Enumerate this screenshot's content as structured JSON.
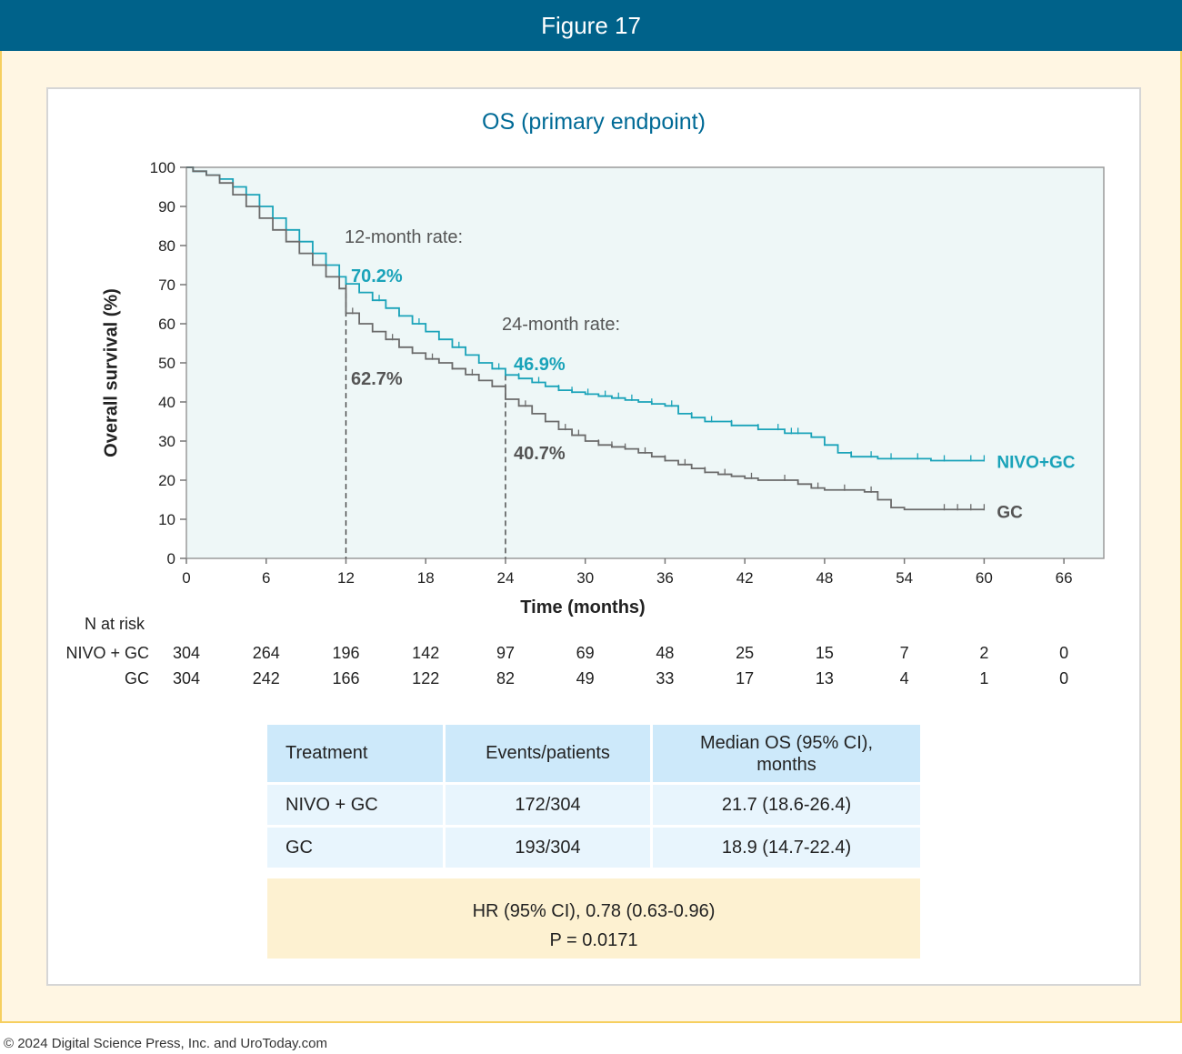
{
  "figure_title": "Figure 17",
  "footer": "© 2024 Digital Science Press, Inc. and UroToday.com",
  "chart_data": {
    "type": "line",
    "title": "OS (primary endpoint)",
    "xlabel": "Time (months)",
    "ylabel": "Overall survival (%)",
    "xlim": [
      0,
      69
    ],
    "ylim": [
      0,
      100
    ],
    "xticks": [
      0,
      6,
      12,
      18,
      24,
      30,
      36,
      42,
      48,
      54,
      60,
      66
    ],
    "yticks": [
      0,
      10,
      20,
      30,
      40,
      50,
      60,
      70,
      80,
      90,
      100
    ],
    "grid": false,
    "legend": "inline labels at line ends (right)",
    "series": [
      {
        "name": "NIVO+GC",
        "color": "#1aa3b9",
        "points": [
          [
            0,
            100
          ],
          [
            0.5,
            99
          ],
          [
            1.5,
            98
          ],
          [
            2.5,
            97
          ],
          [
            3.5,
            95
          ],
          [
            4.5,
            93
          ],
          [
            5.5,
            90
          ],
          [
            6.5,
            87
          ],
          [
            7.5,
            84
          ],
          [
            8.5,
            81
          ],
          [
            9.5,
            78
          ],
          [
            10.5,
            75
          ],
          [
            11.5,
            72
          ],
          [
            12,
            70.2
          ],
          [
            13,
            68
          ],
          [
            14,
            66
          ],
          [
            15,
            64
          ],
          [
            16,
            62
          ],
          [
            17,
            60
          ],
          [
            18,
            58
          ],
          [
            19,
            56
          ],
          [
            20,
            54
          ],
          [
            21,
            52
          ],
          [
            22,
            50
          ],
          [
            23,
            48.5
          ],
          [
            24,
            46.9
          ],
          [
            25,
            46
          ],
          [
            26,
            45
          ],
          [
            27,
            44
          ],
          [
            28,
            43
          ],
          [
            29,
            42.5
          ],
          [
            30,
            42
          ],
          [
            31,
            41.5
          ],
          [
            32,
            41
          ],
          [
            33,
            40.5
          ],
          [
            34,
            40
          ],
          [
            35,
            39.5
          ],
          [
            36,
            39
          ],
          [
            37,
            37
          ],
          [
            38,
            36
          ],
          [
            39,
            35
          ],
          [
            40,
            35
          ],
          [
            41,
            34
          ],
          [
            42,
            34
          ],
          [
            43,
            33
          ],
          [
            44,
            33
          ],
          [
            45,
            32
          ],
          [
            46,
            32
          ],
          [
            47,
            31
          ],
          [
            48,
            29
          ],
          [
            49,
            27
          ],
          [
            50,
            26
          ],
          [
            52,
            25.5
          ],
          [
            54,
            25.5
          ],
          [
            56,
            25
          ],
          [
            58,
            25
          ],
          [
            60,
            25
          ]
        ],
        "censor_months": [
          13,
          14.5,
          16,
          17.5,
          19,
          20.5,
          22,
          23.5,
          25,
          26.5,
          28,
          29,
          30.2,
          31.5,
          32.5,
          33.5,
          35,
          36.5,
          38,
          39.5,
          41,
          43,
          44.5,
          45.5,
          46,
          50,
          51.5,
          53,
          55,
          57,
          59,
          60
        ]
      },
      {
        "name": "GC",
        "color": "#6b6b6b",
        "points": [
          [
            0,
            100
          ],
          [
            0.5,
            99
          ],
          [
            1.5,
            98
          ],
          [
            2.5,
            96
          ],
          [
            3.5,
            93
          ],
          [
            4.5,
            90
          ],
          [
            5.5,
            87
          ],
          [
            6.5,
            84
          ],
          [
            7.5,
            81
          ],
          [
            8.5,
            78
          ],
          [
            9.5,
            75
          ],
          [
            10.5,
            72
          ],
          [
            11.5,
            69
          ],
          [
            12,
            62.7
          ],
          [
            13,
            60
          ],
          [
            14,
            58
          ],
          [
            15,
            56
          ],
          [
            16,
            54
          ],
          [
            17,
            52.5
          ],
          [
            18,
            51
          ],
          [
            19,
            50
          ],
          [
            20,
            48.5
          ],
          [
            21,
            47
          ],
          [
            22,
            45.5
          ],
          [
            23,
            44
          ],
          [
            24,
            40.7
          ],
          [
            25,
            39
          ],
          [
            26,
            37
          ],
          [
            27,
            35
          ],
          [
            28,
            33
          ],
          [
            29,
            31.5
          ],
          [
            30,
            30
          ],
          [
            31,
            29
          ],
          [
            32,
            28.5
          ],
          [
            33,
            28
          ],
          [
            34,
            27
          ],
          [
            35,
            26
          ],
          [
            36,
            25
          ],
          [
            37,
            24
          ],
          [
            38,
            23
          ],
          [
            39,
            22
          ],
          [
            40,
            21.5
          ],
          [
            41,
            21
          ],
          [
            42,
            20.5
          ],
          [
            43,
            20
          ],
          [
            44,
            20
          ],
          [
            45,
            20
          ],
          [
            46,
            19
          ],
          [
            47,
            18
          ],
          [
            48,
            17.5
          ],
          [
            50,
            17.5
          ],
          [
            51,
            17
          ],
          [
            52,
            15
          ],
          [
            53,
            13
          ],
          [
            54,
            12.5
          ],
          [
            56,
            12.5
          ],
          [
            58,
            12.5
          ],
          [
            60,
            12.5
          ]
        ],
        "censor_months": [
          12.5,
          14,
          15.5,
          17,
          18.5,
          20,
          21.5,
          23,
          25.5,
          27,
          28.5,
          29.5,
          31,
          32,
          33,
          34.5,
          36,
          37.5,
          39,
          40.5,
          42.5,
          45,
          47.5,
          49.5,
          51.5,
          57,
          58,
          59,
          60
        ]
      }
    ],
    "annotations": [
      {
        "text": "12-month rate:",
        "color": "#555555"
      },
      {
        "text": "70.2%",
        "color": "#1aa3b9",
        "value": 70.2
      },
      {
        "text": "62.7%",
        "color": "#555555",
        "value": 62.7
      },
      {
        "text": "24-month rate:",
        "color": "#555555"
      },
      {
        "text": "46.9%",
        "color": "#1aa3b9",
        "value": 46.9
      },
      {
        "text": "40.7%",
        "color": "#555555",
        "value": 40.7
      }
    ],
    "reference_lines": [
      {
        "x": 12,
        "style": "dashed"
      },
      {
        "x": 24,
        "style": "dashed"
      }
    ]
  },
  "risk_table": {
    "title": "N at risk",
    "times": [
      0,
      6,
      12,
      18,
      24,
      30,
      36,
      42,
      48,
      54,
      60,
      66
    ],
    "rows": [
      {
        "label": "NIVO + GC",
        "values": [
          "304",
          "264",
          "196",
          "142",
          "97",
          "69",
          "48",
          "25",
          "15",
          "7",
          "2",
          "0"
        ]
      },
      {
        "label": "GC",
        "values": [
          "304",
          "242",
          "166",
          "122",
          "82",
          "49",
          "33",
          "17",
          "13",
          "4",
          "1",
          "0"
        ]
      }
    ]
  },
  "summary_table": {
    "headers": {
      "treatment": "Treatment",
      "events": "Events/patients",
      "median_line1": "Median OS (95% CI),",
      "median_line2": "months"
    },
    "rows": [
      {
        "treatment": "NIVO + GC",
        "events": "172/304",
        "median": "21.7 (18.6-26.4)"
      },
      {
        "treatment": "GC",
        "events": "193/304",
        "median": "18.9 (14.7-22.4)"
      }
    ],
    "hr_line": "HR (95% CI), 0.78 (0.63-0.96)",
    "p_line": "P = 0.0171"
  }
}
